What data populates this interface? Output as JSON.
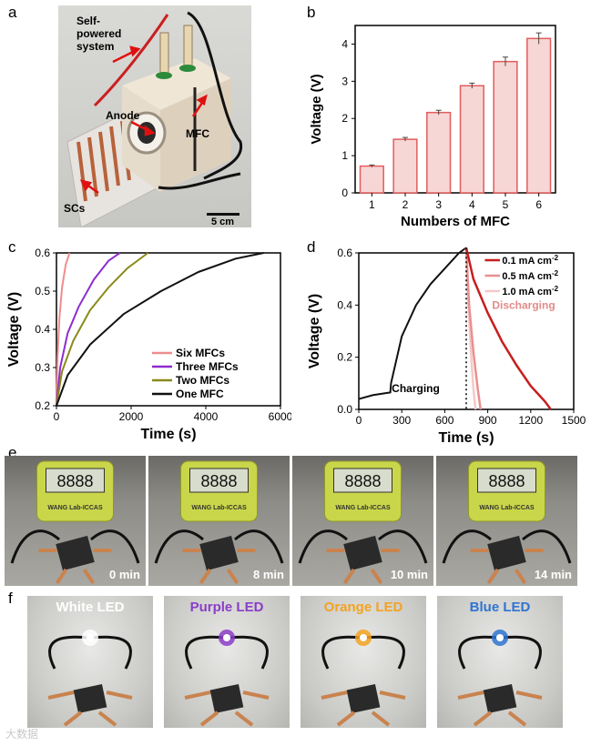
{
  "panels": {
    "a": "a",
    "b": "b",
    "c": "c",
    "d": "d",
    "e": "e",
    "f": "f"
  },
  "photo_a": {
    "self_powered": "Self-powered system",
    "self_powered_l1": "Self-",
    "self_powered_l2": "powered",
    "self_powered_l3": "system",
    "anode": "Anode",
    "mfc": "MFC",
    "scs": "SCs",
    "scale": "5 cm"
  },
  "chart_b": {
    "type": "bar",
    "xlabel": "Numbers of MFC",
    "ylabel": "Voltage (V)",
    "categories": [
      "1",
      "2",
      "3",
      "4",
      "5",
      "6"
    ],
    "values": [
      0.72,
      1.44,
      2.16,
      2.88,
      3.53,
      4.15
    ],
    "errors": [
      0.03,
      0.05,
      0.06,
      0.07,
      0.12,
      0.15
    ],
    "ylim": [
      0,
      4.5
    ],
    "yticks": [
      "0",
      "1",
      "2",
      "3",
      "4"
    ],
    "colors": {
      "fill": "#f7d6d6",
      "edge": "#e35c5c"
    }
  },
  "chart_c": {
    "type": "line",
    "xlabel": "Time (s)",
    "ylabel": "Voltage (V)",
    "xlim": [
      0,
      6000
    ],
    "ylim": [
      0.2,
      0.6
    ],
    "xticks": [
      "0",
      "2000",
      "4000",
      "6000"
    ],
    "yticks": [
      "0.2",
      "0.3",
      "0.4",
      "0.5",
      "0.6"
    ],
    "series": [
      {
        "name": "Six MFCs",
        "color": "#f08c8c",
        "x": [
          0,
          30,
          80,
          150,
          250,
          350
        ],
        "y": [
          0.2,
          0.33,
          0.43,
          0.51,
          0.57,
          0.6
        ]
      },
      {
        "name": "Three MFCs",
        "color": "#8e2ccf",
        "x": [
          0,
          100,
          300,
          600,
          1000,
          1400,
          1700
        ],
        "y": [
          0.2,
          0.3,
          0.39,
          0.46,
          0.53,
          0.58,
          0.6
        ]
      },
      {
        "name": "Two MFCs",
        "color": "#8a8a1a",
        "x": [
          0,
          150,
          450,
          900,
          1400,
          1900,
          2450
        ],
        "y": [
          0.2,
          0.29,
          0.37,
          0.45,
          0.51,
          0.56,
          0.6
        ]
      },
      {
        "name": "One MFC",
        "color": "#111111",
        "x": [
          0,
          300,
          900,
          1800,
          2800,
          3800,
          4800,
          5550
        ],
        "y": [
          0.2,
          0.28,
          0.36,
          0.44,
          0.5,
          0.55,
          0.585,
          0.6
        ]
      }
    ]
  },
  "chart_d": {
    "type": "line",
    "xlabel": "Time (s)",
    "ylabel": "Voltage (V)",
    "xlim": [
      0,
      1500
    ],
    "ylim": [
      0,
      0.6
    ],
    "xticks": [
      "0",
      "300",
      "600",
      "900",
      "1200",
      "1500"
    ],
    "yticks": [
      "0.0",
      "0.2",
      "0.4",
      "0.6"
    ],
    "annotations": {
      "charging": "Charging",
      "discharging": "Discharging"
    },
    "charging": {
      "color": "#111111",
      "x": [
        0,
        100,
        220,
        225,
        300,
        400,
        500,
        600,
        700,
        750
      ],
      "y": [
        0.04,
        0.055,
        0.065,
        0.1,
        0.28,
        0.4,
        0.48,
        0.54,
        0.6,
        0.62
      ]
    },
    "series": [
      {
        "name": "0.1 mA cm",
        "sup": "-2",
        "color": "#c81e1e",
        "x": [
          750,
          800,
          900,
          1000,
          1100,
          1200,
          1300,
          1340
        ],
        "y": [
          0.62,
          0.5,
          0.37,
          0.26,
          0.17,
          0.09,
          0.03,
          0.0
        ]
      },
      {
        "name": "0.5 mA cm",
        "sup": "-2",
        "color": "#e89090",
        "x": [
          750,
          770,
          800,
          830,
          850
        ],
        "y": [
          0.62,
          0.4,
          0.22,
          0.08,
          0.0
        ]
      },
      {
        "name": "1.0 mA cm",
        "sup": "-2",
        "color": "#f5c8c8",
        "x": [
          750,
          765,
          785,
          800,
          815
        ],
        "y": [
          0.62,
          0.4,
          0.2,
          0.08,
          0.0
        ]
      }
    ]
  },
  "panel_e": {
    "captions": [
      "0 min",
      "8 min",
      "10 min",
      "14 min"
    ],
    "timer_brand": "WANG Lab-ICCAS"
  },
  "panel_f": {
    "leds": [
      {
        "label": "White LED",
        "color": "#ffffff"
      },
      {
        "label": "Purple LED",
        "color": "#8a3dc8"
      },
      {
        "label": "Orange LED",
        "color": "#f3a321"
      },
      {
        "label": "Blue LED",
        "color": "#2f74d0"
      }
    ]
  },
  "watermark": "大数据"
}
